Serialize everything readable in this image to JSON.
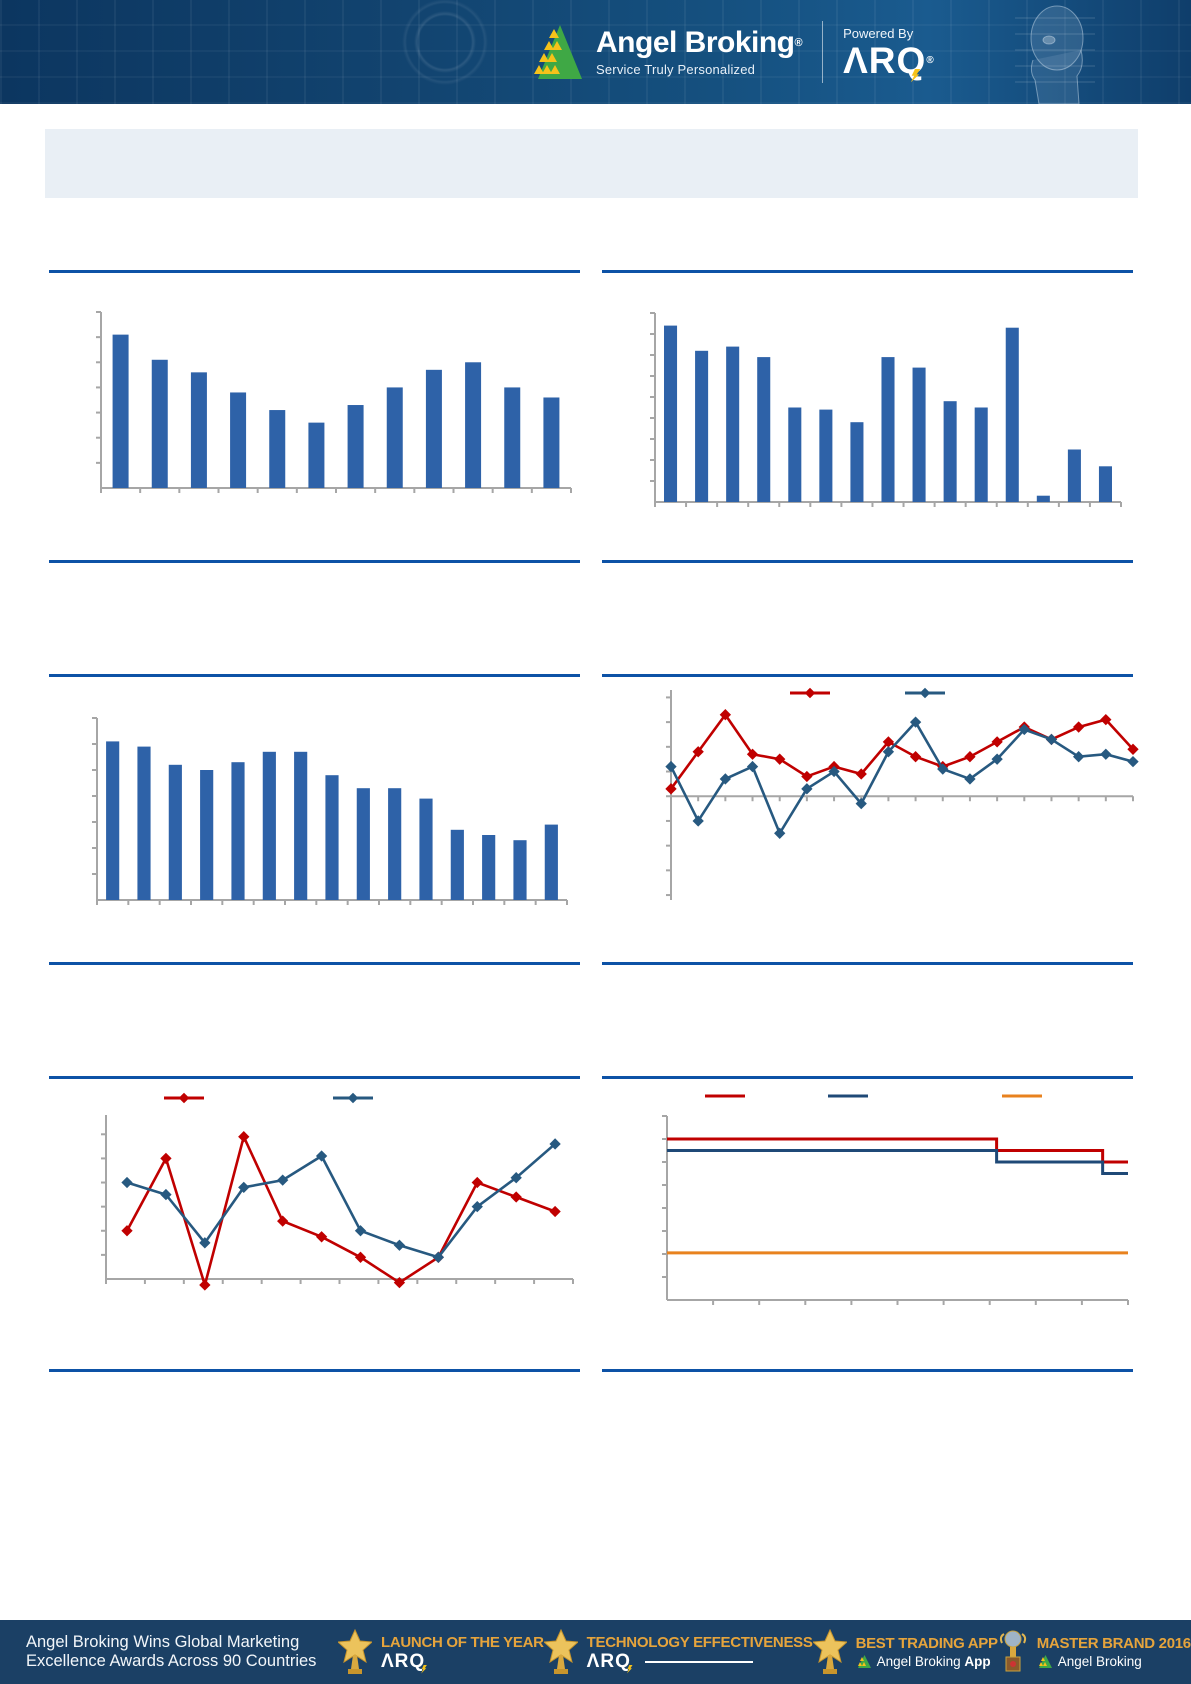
{
  "header": {
    "brand": "Angel Broking",
    "reg": "®",
    "tagline": "Service Truly Personalized",
    "powered_by": "Powered By",
    "arq": "ΛRQ",
    "arq_reg": "®"
  },
  "banner": {
    "text": ""
  },
  "colors": {
    "bar_blue": "#2e62a8",
    "line_red": "#c00000",
    "line_navy": "#275980",
    "step_navy": "#1f4977",
    "line_orange": "#e8821e",
    "separator_blue": "#0d52a6",
    "axis_gray": "#a6a6a6",
    "banner_bg": "#e9eff5",
    "footer_bg": "#1b4065",
    "award_gold": "#e6a43c",
    "logo_green": "#3fa845",
    "logo_yellow": "#f6c21a"
  },
  "chart_data": [
    {
      "id": "row1-left-bar",
      "type": "bar",
      "bar_color": "#2e62a8",
      "values": [
        6.1,
        5.1,
        4.6,
        3.8,
        3.1,
        2.6,
        3.3,
        4.0,
        4.7,
        5.0,
        4.0,
        3.6
      ],
      "ylim": [
        0,
        7
      ],
      "ytick_interval": 1,
      "axis_text_visible": false
    },
    {
      "id": "row1-right-bar",
      "type": "bar",
      "bar_color": "#2e62a8",
      "values": [
        8.4,
        7.2,
        7.4,
        6.9,
        4.5,
        4.4,
        3.8,
        6.9,
        6.4,
        4.8,
        4.5,
        8.3,
        0.3,
        2.5,
        1.7
      ],
      "ylim": [
        0,
        9
      ],
      "ytick_interval": 1,
      "axis_text_visible": false
    },
    {
      "id": "row2-left-bar",
      "type": "bar",
      "bar_color": "#2e62a8",
      "values": [
        6.1,
        5.9,
        5.2,
        5.0,
        5.3,
        5.7,
        5.7,
        4.8,
        4.3,
        4.3,
        3.9,
        2.7,
        2.5,
        2.3,
        2.9
      ],
      "ylim": [
        0,
        7
      ],
      "ytick_interval": 1,
      "axis_text_visible": false
    },
    {
      "id": "row2-right-line",
      "type": "line",
      "marker": "diamond",
      "ylim": [
        -4.2,
        4.3
      ],
      "ytick_interval": 1,
      "legend_swatches": [
        "#c00000",
        "#275980"
      ],
      "series": [
        {
          "color": "#c00000",
          "values": [
            0.3,
            1.8,
            3.3,
            1.7,
            1.5,
            0.8,
            1.2,
            0.9,
            2.2,
            1.6,
            1.2,
            1.6,
            2.2,
            2.8,
            2.3,
            2.8,
            3.1,
            1.9
          ]
        },
        {
          "color": "#275980",
          "values": [
            1.2,
            -1.0,
            0.7,
            1.2,
            -1.5,
            0.3,
            1.0,
            -0.3,
            1.8,
            3.0,
            1.1,
            0.7,
            1.5,
            2.7,
            2.3,
            1.6,
            1.7,
            1.4
          ]
        }
      ],
      "axis_text_visible": false
    },
    {
      "id": "row3-left-line",
      "type": "line",
      "marker": "diamond",
      "ylim": [
        0,
        6.8
      ],
      "ytick_interval": 1,
      "legend_swatches": [
        "#c00000",
        "#275980"
      ],
      "series": [
        {
          "color": "#c00000",
          "values": [
            2.0,
            5.0,
            -0.25,
            5.9,
            2.4,
            1.75,
            0.9,
            -0.15,
            0.9,
            4.0,
            3.4,
            2.8
          ]
        },
        {
          "color": "#275980",
          "values": [
            4.0,
            3.5,
            1.5,
            3.8,
            4.1,
            5.1,
            2.0,
            1.4,
            0.9,
            3.0,
            4.2,
            5.6
          ]
        }
      ],
      "axis_text_visible": false
    },
    {
      "id": "row3-right-step",
      "type": "step",
      "ylim": [
        0,
        8
      ],
      "ytick_interval": 1,
      "legend_swatches": [
        "#c00000",
        "#1f4977",
        "#e8821e"
      ],
      "step_positions": [
        0.715,
        0.945
      ],
      "series": [
        {
          "color": "#c00000",
          "levels": [
            7.0,
            6.5,
            6.0
          ]
        },
        {
          "color": "#1f4977",
          "levels": [
            6.5,
            6.0,
            5.5
          ]
        },
        {
          "color": "#e8821e",
          "levels": [
            2.05
          ]
        }
      ],
      "axis_text_visible": false
    }
  ],
  "footer": {
    "headline_line1": "Angel Broking Wins Global Marketing",
    "headline_line2": "Excellence Awards Across 90 Countries",
    "awards": [
      {
        "title": "LAUNCH OF THE YEAR",
        "subtitle": "ΛRQ",
        "logo": "arq",
        "trophy": "star"
      },
      {
        "title": "TECHNOLOGY EFFECTIVENESS",
        "subtitle": "ΛRQ",
        "logo": "arq-line",
        "trophy": "star"
      },
      {
        "title": "BEST TRADING APP",
        "subtitle": "Angel Broking",
        "subtitle_bold": "App",
        "logo": "angel",
        "trophy": "star"
      },
      {
        "title": "MASTER BRAND 2016",
        "subtitle": "Angel Broking",
        "subtitle_bold": "",
        "logo": "angel",
        "trophy": "globe"
      }
    ]
  }
}
